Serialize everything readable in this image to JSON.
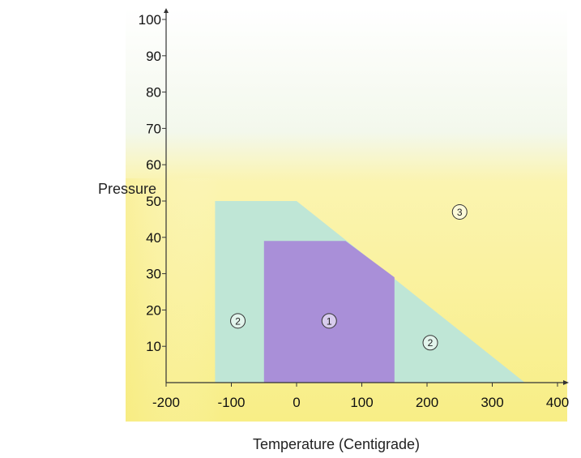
{
  "chart_data": {
    "type": "area",
    "title": "",
    "xlabel": "Temperature (Centigrade)",
    "ylabel": "Pressure",
    "xlim": [
      -200,
      400
    ],
    "ylim": [
      0,
      100
    ],
    "xticks": [
      "-200",
      "-100",
      "0",
      "100",
      "200",
      "300",
      "400"
    ],
    "yticks": [
      "10",
      "20",
      "30",
      "40",
      "50",
      "60",
      "70",
      "80",
      "90",
      "100"
    ],
    "grid": false,
    "legend": "none",
    "regions": [
      {
        "label": "3",
        "color": "#fbf3a6",
        "polygon": [
          [
            -200,
            0
          ],
          [
            400,
            0
          ],
          [
            400,
            56
          ],
          [
            -200,
            56
          ]
        ],
        "label_at": [
          250,
          47
        ]
      },
      {
        "label": "2",
        "color": "#bfe6d6",
        "polygon": [
          [
            -125,
            0
          ],
          [
            350,
            0
          ],
          [
            0,
            50
          ],
          [
            -125,
            50
          ]
        ],
        "label_at": [
          -90,
          17
        ]
      },
      {
        "label": "1",
        "color": "#a98fd8",
        "polygon": [
          [
            -50,
            0
          ],
          [
            150,
            0
          ],
          [
            150,
            29
          ],
          [
            75,
            39
          ],
          [
            -50,
            39
          ]
        ],
        "label_at": [
          50,
          17
        ]
      }
    ],
    "extra_labels": [
      {
        "label": "2",
        "at": [
          205,
          11
        ]
      }
    ]
  }
}
